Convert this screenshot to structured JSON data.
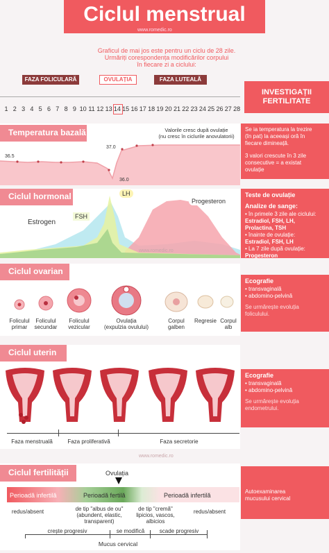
{
  "title": "Ciclul menstrual",
  "watermark": "www.romedic.ro",
  "intro": [
    "Graficul de mai jos este pentru un ciclu de 28 zile.",
    "Urmăriți corespondența modificărilor corpului",
    "în fiecare zi a ciclului:"
  ],
  "phases": {
    "follicular": "FAZA FOLICULARĂ",
    "ovulation": "OVULAȚIA",
    "luteal": "FAZA LUTEALĂ"
  },
  "days": [
    "1",
    "2",
    "3",
    "4",
    "5",
    "6",
    "7",
    "8",
    "9",
    "10",
    "11",
    "12",
    "13",
    "14",
    "15",
    "16",
    "17",
    "18",
    "19",
    "20",
    "21",
    "22",
    "23",
    "24",
    "25",
    "26",
    "27",
    "28"
  ],
  "investigations": [
    "INVESTIGAȚII",
    "FERTILITATE"
  ],
  "temperature": {
    "label": "Temperatura bazală",
    "note": [
      "Valorile cresc după ovulație",
      "(nu cresc în ciclurile anovulatorii)"
    ],
    "v1": "36.5",
    "v2": "37.0",
    "v3": "36.0",
    "side": [
      "Se ia temperatura la trezire",
      "(în pat) la aceeași oră în",
      "fiecare dimineață.",
      "",
      "3 valori crescute în 3 zile",
      "consecutive = a existat",
      "ovulație"
    ]
  },
  "hormonal": {
    "label": "Ciclul hormonal",
    "estrogen": "Estrogen",
    "fsh": "FSH",
    "lh": "LH",
    "progesteron": "Progesteron",
    "side_head": "Teste de ovulație",
    "side_sub": "Analize de sange:",
    "side": [
      {
        "t": "în primele 3 zile ale ciclului:",
        "b": "Estradiol, FSH, LH, Prolactina, TSH"
      },
      {
        "t": "înainte de ovulație:",
        "b": "Estradiol, FSH, LH"
      },
      {
        "t": "La 7 zile după ovulație:",
        "b": "Progesteron"
      }
    ]
  },
  "ovarian": {
    "label": "Ciclul ovarian",
    "stages": [
      [
        "Foliculul",
        "primar"
      ],
      [
        "Foliculul",
        "secundar"
      ],
      [
        "Foliculul",
        "vezicular"
      ],
      [
        "Ovulația",
        "(expulzia ovulului)"
      ],
      [
        "Corpul",
        "galben"
      ],
      [
        "Regresie"
      ],
      [
        "Corpul",
        "alb"
      ]
    ],
    "side_head": "Ecografie",
    "side": [
      "• transvaginală",
      "• abdomino-pelvină"
    ],
    "side_note": [
      "Se urmărește evoluția",
      "foliculului."
    ]
  },
  "uterine": {
    "label": "Ciclul uterin",
    "phases": [
      "Faza menstruală",
      "Faza proliferativă",
      "Faza secretorie"
    ],
    "side_head": "Ecografie",
    "side": [
      "• transvaginală",
      "• abdomino-pelvină"
    ],
    "side_note": [
      "Se urmărește evoluția",
      "endometrului."
    ]
  },
  "fertility": {
    "label": "Ciclul fertilității",
    "ovulation": "Ovulația",
    "p1": "Perioadă infertilă",
    "p2": "Perioadă fertilă",
    "p3": "Perioadă infertilă",
    "side": [
      "Autoexaminarea",
      "mucusului cervical"
    ],
    "mucus": [
      [
        "redus/absent"
      ],
      [
        "de tip \"albus de ou\"",
        "(abundent, elastic,",
        "transparent)"
      ],
      [
        "de tip \"cremă\"",
        "lipicios, vascos,",
        "albicios"
      ],
      [
        "redus/absent"
      ]
    ],
    "trend": [
      "crește progresiv",
      "se modifică",
      "scade progresiv"
    ],
    "bottom": "Mucus cervical"
  },
  "colors": {
    "accent": "#f05a5f",
    "header": "#f08a93",
    "dark": "#8c3a3a"
  }
}
